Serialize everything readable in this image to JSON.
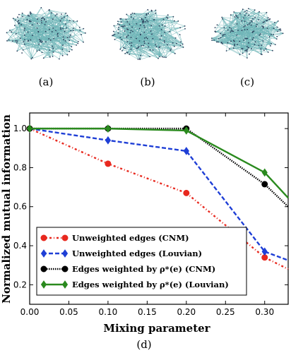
{
  "panels": {
    "a_label": "(a)",
    "b_label": "(b)",
    "c_label": "(c)",
    "d_label": "(d)"
  },
  "chart_data": {
    "type": "line",
    "xlabel": "Mixing parameter",
    "ylabel": "Normalized mutual information",
    "xlim": [
      0.0,
      0.33
    ],
    "ylim": [
      0.1,
      1.08
    ],
    "xticks": [
      "0.00",
      "0.05",
      "0.10",
      "0.15",
      "0.20",
      "0.25",
      "0.30"
    ],
    "xtick_values": [
      0.0,
      0.05,
      0.1,
      0.15,
      0.2,
      0.25,
      0.3
    ],
    "yticks": [
      "0.2",
      "0.4",
      "0.6",
      "0.8",
      "1.0"
    ],
    "ytick_values": [
      0.2,
      0.4,
      0.6,
      0.8,
      1.0
    ],
    "grid": false,
    "legend_position": "lower-left",
    "series": [
      {
        "name": "Unweighted edges (CNM)",
        "color": "#e8281e",
        "dash": "dotted-dash",
        "marker": "circle",
        "x": [
          0.0,
          0.1,
          0.2,
          0.3,
          0.33
        ],
        "y": [
          1.0,
          0.82,
          0.67,
          0.34,
          0.28
        ]
      },
      {
        "name": "Unweighted edges (Louvian)",
        "color": "#1f3fd6",
        "dash": "dashed",
        "marker": "diamond",
        "x": [
          0.0,
          0.1,
          0.2,
          0.3,
          0.33
        ],
        "y": [
          1.0,
          0.94,
          0.885,
          0.37,
          0.325
        ]
      },
      {
        "name": "Edges weighted by ρ*(e) (CNM)",
        "color": "#000000",
        "dash": "dotted",
        "marker": "circle",
        "x": [
          0.0,
          0.1,
          0.2,
          0.3,
          0.33
        ],
        "y": [
          1.0,
          1.0,
          1.0,
          0.715,
          0.6
        ]
      },
      {
        "name": "Edges weighted by ρ*(e) (Louvian)",
        "color": "#2a8a1e",
        "dash": "solid",
        "marker": "diamond",
        "x": [
          0.0,
          0.1,
          0.2,
          0.3,
          0.33
        ],
        "y": [
          1.0,
          1.0,
          0.99,
          0.775,
          0.645
        ]
      }
    ]
  }
}
